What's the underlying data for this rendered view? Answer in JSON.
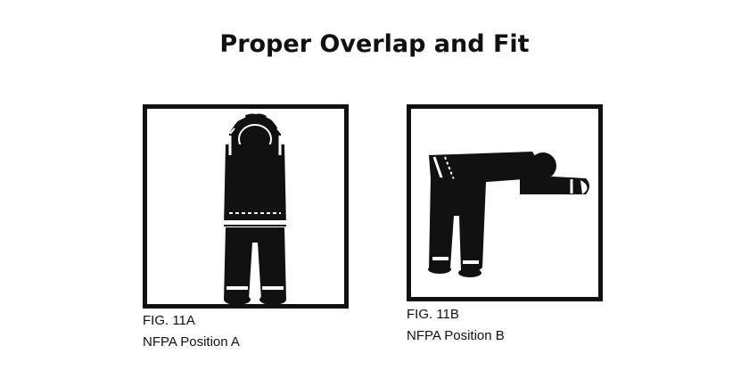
{
  "title": "Proper Overlap and Fit",
  "colors": {
    "ink": "#111111",
    "background": "#ffffff",
    "reflective_trim": "#ffffff"
  },
  "figures": [
    {
      "fig_label": "FIG. 11A",
      "position_label": "NFPA Position A",
      "illustration": "firefighter-standing-arms-raised"
    },
    {
      "fig_label": "FIG. 11B",
      "position_label": "NFPA Position B",
      "illustration": "firefighter-bent-forward"
    }
  ]
}
